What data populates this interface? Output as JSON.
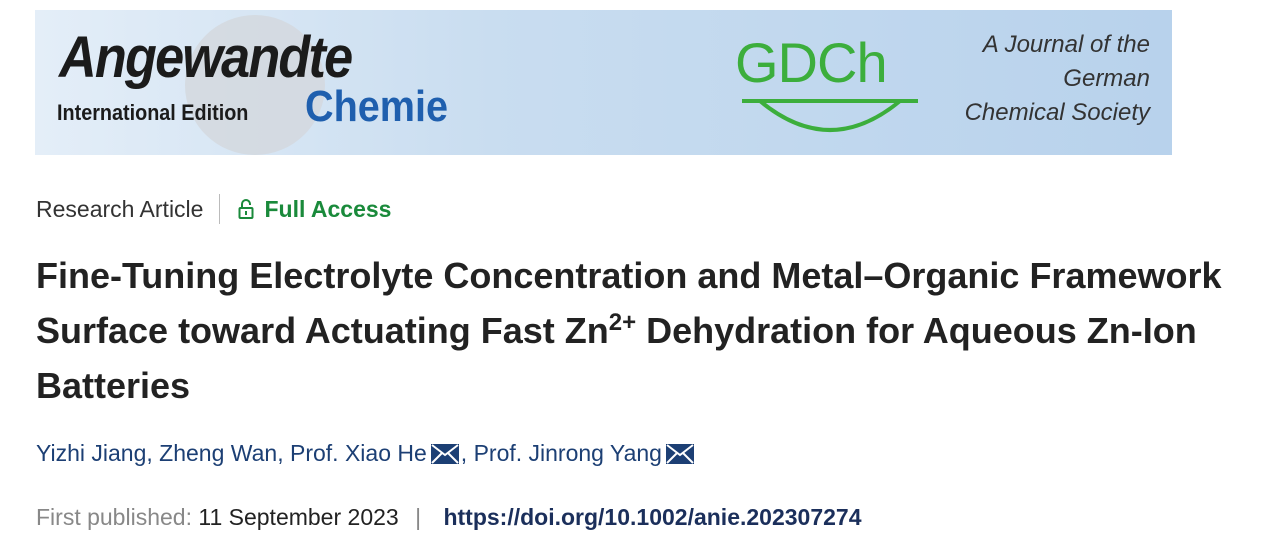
{
  "banner": {
    "journal_name": "Angewandte",
    "edition": "International Edition",
    "journal_name_2": "Chemie",
    "society_logo": "GDCh",
    "tagline_lines": [
      "A Journal of the",
      "German",
      "Chemical Society"
    ],
    "colors": {
      "chemie": "#1f5fae",
      "gdch": "#3cae3c"
    }
  },
  "meta": {
    "type": "Research Article",
    "access": "Full Access",
    "access_icon": "lock-open-icon",
    "access_color": "#1a8a3b"
  },
  "article": {
    "title_part1": "Fine-Tuning Electrolyte Concentration and Metal–Organic Framework Surface toward Actuating Fast Zn",
    "title_sup": "2+",
    "title_part2": " Dehydration for Aqueous Zn-Ion Batteries"
  },
  "authors": [
    {
      "name": "Yizhi Jiang",
      "sep": ", "
    },
    {
      "name": "Zheng Wan",
      "sep": ", "
    },
    {
      "name": "Prof. Xiao He",
      "sep": ", ",
      "email_icon": "envelope-icon"
    },
    {
      "name": "Prof. Jinrong Yang",
      "sep": "",
      "email_icon": "envelope-icon"
    }
  ],
  "publication": {
    "label": "First published:",
    "date": "11 September 2023",
    "separator": "|",
    "doi": "https://doi.org/10.1002/anie.202307274"
  }
}
